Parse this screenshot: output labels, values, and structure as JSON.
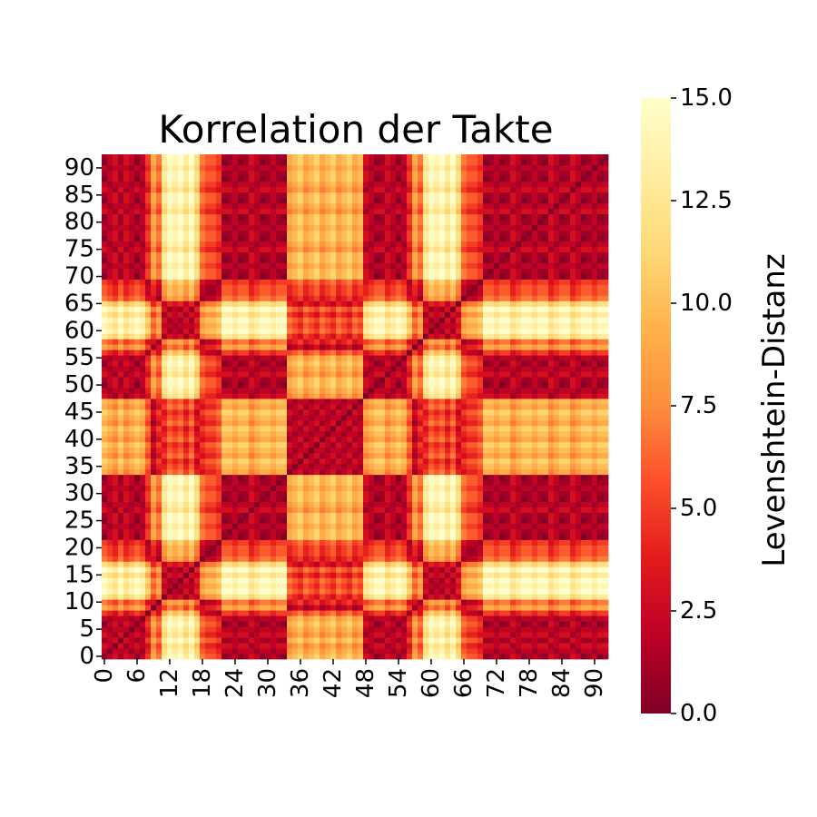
{
  "chart_data": {
    "type": "heatmap",
    "title": "Korrelation der Takte",
    "grid_size": 93,
    "x_tick_labels": [
      "0",
      "6",
      "12",
      "18",
      "24",
      "30",
      "36",
      "42",
      "48",
      "54",
      "60",
      "66",
      "72",
      "78",
      "84",
      "90"
    ],
    "x_tick_values": [
      0,
      6,
      12,
      18,
      24,
      30,
      36,
      42,
      48,
      54,
      60,
      66,
      72,
      78,
      84,
      90
    ],
    "y_tick_labels": [
      "0",
      "5",
      "10",
      "15",
      "20",
      "25",
      "30",
      "35",
      "40",
      "45",
      "50",
      "55",
      "60",
      "65",
      "70",
      "75",
      "80",
      "85",
      "90"
    ],
    "y_tick_values": [
      0,
      5,
      10,
      15,
      20,
      25,
      30,
      35,
      40,
      45,
      50,
      55,
      60,
      65,
      70,
      75,
      80,
      85,
      90
    ],
    "y_origin": "bottom",
    "grid": false,
    "colormap": "YlOrRd_r",
    "colormap_stops": [
      "#800026",
      "#bd0026",
      "#e31a1c",
      "#fc4e2a",
      "#fd8d3c",
      "#feb24c",
      "#fed976",
      "#ffeda0",
      "#ffffcc"
    ],
    "colorbar": {
      "label": "Levenshtein-Distanz",
      "range": [
        0,
        15
      ],
      "tick_labels": [
        "0.0",
        "2.5",
        "5.0",
        "7.5",
        "10.0",
        "12.5",
        "15.0"
      ],
      "tick_values": [
        0,
        2.5,
        5,
        7.5,
        10,
        12.5,
        15
      ],
      "placement": "right"
    },
    "bar_distance_profile": [
      0,
      2,
      3,
      1,
      3,
      2,
      0,
      2,
      5,
      9,
      7,
      13,
      15,
      14,
      15,
      13,
      15,
      12,
      7,
      6,
      6,
      5,
      0,
      1,
      2,
      0,
      1,
      3,
      2,
      0,
      1,
      2,
      1,
      0,
      9,
      10,
      11,
      9,
      10,
      11,
      9,
      10,
      11,
      9,
      10,
      11,
      9,
      10,
      3,
      2,
      0,
      1,
      3,
      2,
      0,
      2,
      5,
      9,
      7,
      13,
      15,
      14,
      15,
      13,
      15,
      12,
      7,
      6,
      6,
      5,
      0,
      1,
      2,
      0,
      1,
      3,
      2,
      0,
      1,
      2,
      1,
      0,
      3,
      2,
      0,
      1,
      3,
      2,
      0,
      1,
      2,
      0,
      1
    ]
  }
}
